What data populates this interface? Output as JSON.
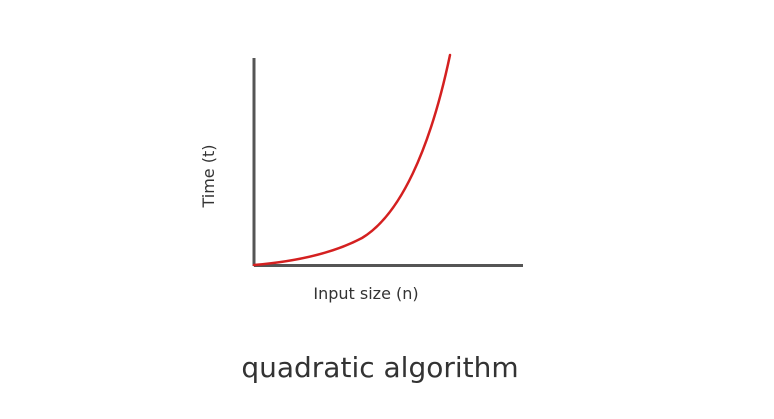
{
  "figure": {
    "caption": "quadratic algorithm",
    "ylabel": "Time (t)",
    "xlabel": "Input size (n)",
    "colors": {
      "axis": "#555555",
      "curve": "#d42020",
      "text": "#333333"
    }
  }
}
